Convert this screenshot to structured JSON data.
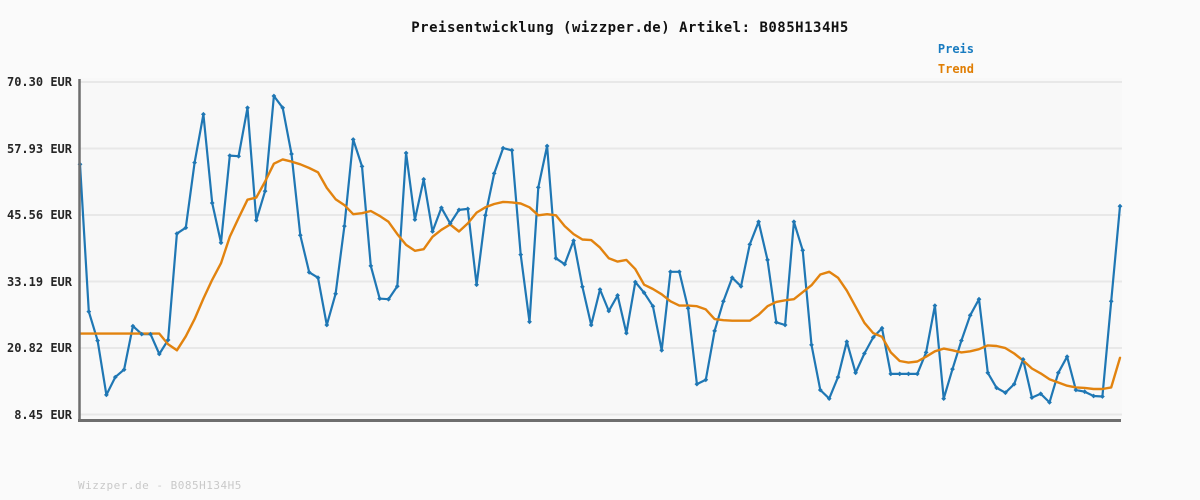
{
  "header": {
    "title": "Preisentwicklung (wizzper.de) Artikel: B085H134H5"
  },
  "legend": {
    "items": [
      {
        "label": "Preis",
        "color": "#187bc0"
      },
      {
        "label": "Trend",
        "color": "#e07e04"
      }
    ]
  },
  "watermark": "Wizzper.de - B085H134H5",
  "colors": {
    "price_line": "#1f77b4",
    "trend_line": "#e2830f",
    "gridline": "#e8e8e8",
    "axis_spine": "#6e6e6e",
    "plot_background": "#f8f8f8",
    "page_background": "#fafafa"
  },
  "chart_data": {
    "type": "line",
    "title": "Preisentwicklung (wizzper.de) Artikel: B085H134H5",
    "ylabel": "",
    "xlabel": "",
    "unit": "EUR",
    "ylim": [
      8.45,
      70.3
    ],
    "grid": "horizontal",
    "legend_position": "top-right",
    "x_axis": {
      "tick_labels": []
    },
    "y_axis": {
      "tick_values": [
        70.3,
        57.93,
        45.56,
        33.19,
        20.82,
        8.45
      ],
      "tick_labels": [
        "70.30 EUR",
        "57.93 EUR",
        "45.56 EUR",
        "33.19 EUR",
        "20.82 EUR",
        "8.45 EUR"
      ]
    },
    "series": [
      {
        "name": "Preis",
        "marker": "diamond",
        "values": [
          55.0,
          27.6,
          22.2,
          12.1,
          15.4,
          16.8,
          24.9,
          23.4,
          23.4,
          19.7,
          22.3,
          42.1,
          43.2,
          55.3,
          64.3,
          47.8,
          40.4,
          56.6,
          56.5,
          65.5,
          44.6,
          50.0,
          67.7,
          65.5,
          56.9,
          41.8,
          34.9,
          33.9,
          25.1,
          30.9,
          43.5,
          59.6,
          54.6,
          36.1,
          30.0,
          29.9,
          32.3,
          57.1,
          44.7,
          52.2,
          42.5,
          46.9,
          44.0,
          46.5,
          46.7,
          32.6,
          45.5,
          53.3,
          58.0,
          57.6,
          38.2,
          25.7,
          50.7,
          58.4,
          37.5,
          36.4,
          40.8,
          32.2,
          25.1,
          31.7,
          27.7,
          30.6,
          23.6,
          33.1,
          31.1,
          28.6,
          20.4,
          35.0,
          35.0,
          28.2,
          14.1,
          14.9,
          24.0,
          29.5,
          33.9,
          32.3,
          40.1,
          44.3,
          37.2,
          25.6,
          25.1,
          44.3,
          39.0,
          21.4,
          13.0,
          11.4,
          15.4,
          22.0,
          16.2,
          19.8,
          22.8,
          24.5,
          16.0,
          16.0,
          16.0,
          16.0,
          20.0,
          28.7,
          11.4,
          16.9,
          22.2,
          26.9,
          29.9,
          16.2,
          13.4,
          12.5,
          14.1,
          18.7,
          11.6,
          12.3,
          10.7,
          16.2,
          19.2,
          13.0,
          12.7,
          11.9,
          11.8,
          29.5,
          47.2
        ]
      },
      {
        "name": "Trend",
        "marker": "none",
        "values": [
          23.5,
          23.5,
          23.5,
          23.5,
          23.5,
          23.5,
          23.5,
          23.5,
          23.5,
          23.5,
          21.5,
          20.4,
          23.0,
          26.2,
          30.0,
          33.5,
          36.6,
          41.5,
          45.0,
          48.4,
          48.8,
          51.8,
          55.1,
          55.9,
          55.5,
          55.0,
          54.3,
          53.5,
          50.6,
          48.5,
          47.4,
          45.7,
          45.9,
          46.3,
          45.4,
          44.3,
          42.0,
          40.0,
          38.9,
          39.2,
          41.5,
          42.8,
          43.8,
          42.5,
          44.0,
          46.0,
          47.0,
          47.6,
          48.0,
          47.9,
          47.7,
          47.0,
          45.5,
          45.7,
          45.5,
          43.5,
          42.0,
          41.0,
          40.9,
          39.5,
          37.5,
          36.9,
          37.2,
          35.5,
          32.6,
          31.8,
          30.8,
          29.5,
          28.7,
          28.7,
          28.6,
          28.0,
          26.2,
          26.0,
          25.9,
          25.9,
          25.9,
          27.0,
          28.6,
          29.4,
          29.7,
          29.9,
          31.2,
          32.5,
          34.5,
          35.0,
          33.9,
          31.5,
          28.5,
          25.5,
          23.6,
          22.9,
          20.0,
          18.4,
          18.1,
          18.3,
          19.2,
          20.2,
          20.7,
          20.4,
          20.0,
          20.2,
          20.6,
          21.3,
          21.2,
          20.8,
          19.8,
          18.5,
          17.0,
          16.1,
          15.0,
          14.4,
          13.8,
          13.5,
          13.4,
          13.2,
          13.2,
          13.5,
          19.0
        ]
      }
    ]
  }
}
